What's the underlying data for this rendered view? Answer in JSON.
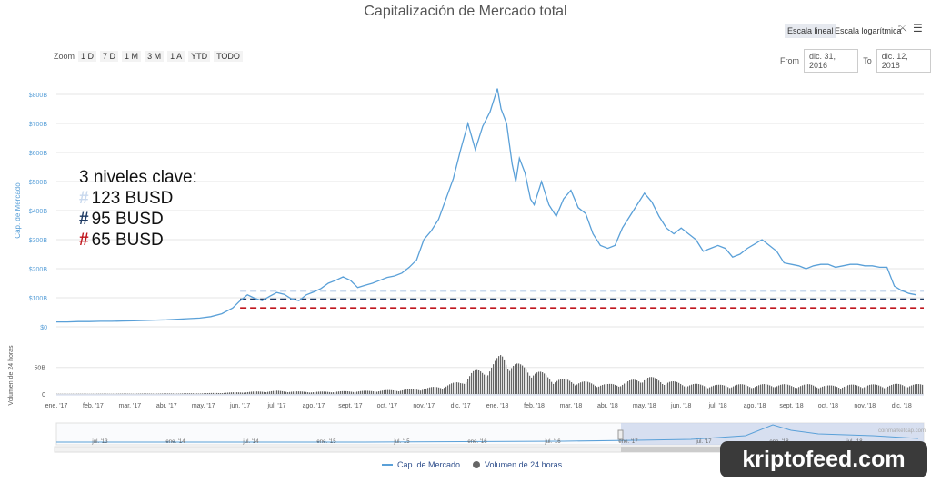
{
  "title": "Capitalización de Mercado total",
  "toolbar": {
    "scale_linear": "Escala lineal",
    "scale_log": "Escala logarítmica",
    "fullscreen_icon": "fullscreen-icon",
    "menu_icon": "menu-icon"
  },
  "zoom": {
    "label": "Zoom",
    "buttons": [
      "1 D",
      "7 D",
      "1 M",
      "3 M",
      "1 A",
      "YTD",
      "TODO"
    ]
  },
  "range": {
    "from_label": "From",
    "from_value": "dic. 31, 2016",
    "to_label": "To",
    "to_value": "dic. 12, 2018"
  },
  "annotation": {
    "heading": "3 niveles clave:",
    "levels": [
      {
        "text": "123 BUSD",
        "color": "#c9d9ee"
      },
      {
        "text": "95 BUSD",
        "color": "#1f3b63"
      },
      {
        "text": "65 BUSD",
        "color": "#c0161d"
      }
    ]
  },
  "legend": {
    "market_cap": "Cap. de Mercado",
    "volume": "Volumen de 24 horas"
  },
  "credit": "coinmarketcap.com",
  "watermark": "kriptofeed.com",
  "chart_data": {
    "type": "line",
    "title": "Capitalización de Mercado total",
    "ylabel": "Cap. de Mercado",
    "y2label": "Volumen de 24 horas",
    "yticks": [
      "$0",
      "$100B",
      "$200B",
      "$300B",
      "$400B",
      "$500B",
      "$600B",
      "$700B",
      "$800B"
    ],
    "ylim": [
      0,
      800
    ],
    "vol_ticks": [
      "0",
      "50B"
    ],
    "vol_ylim": [
      0,
      70
    ],
    "xticks": [
      "ene. '17",
      "feb. '17",
      "mar. '17",
      "abr. '17",
      "may. '17",
      "jun. '17",
      "jul. '17",
      "ago. '17",
      "sept. '17",
      "oct. '17",
      "nov. '17",
      "dic. '17",
      "ene. '18",
      "feb. '18",
      "mar. '18",
      "abr. '18",
      "may. '18",
      "jun. '18",
      "jul. '18",
      "ago. '18",
      "sept. '18",
      "oct. '18",
      "nov. '18",
      "dic. '18"
    ],
    "navigator_ticks": [
      "jul. '13",
      "ene. '14",
      "jul. '14",
      "ene. '15",
      "jul. '15",
      "ene. '16",
      "jul. '16",
      "ene. '17",
      "jul. '17",
      "ene. '18",
      "jul. '18"
    ],
    "series": [
      {
        "name": "Cap. de Mercado",
        "color": "#5aa0d8",
        "x": [
          0,
          0.3,
          0.6,
          0.9,
          1.2,
          1.5,
          1.8,
          2.1,
          2.4,
          2.7,
          3.0,
          3.3,
          3.6,
          3.9,
          4.2,
          4.5,
          4.8,
          5.0,
          5.2,
          5.4,
          5.6,
          5.8,
          6.0,
          6.2,
          6.4,
          6.6,
          6.8,
          7.0,
          7.2,
          7.4,
          7.6,
          7.8,
          8.0,
          8.2,
          8.4,
          8.6,
          8.8,
          9.0,
          9.2,
          9.4,
          9.6,
          9.8,
          10.0,
          10.2,
          10.4,
          10.6,
          10.8,
          11.0,
          11.2,
          11.4,
          11.6,
          11.8,
          12.0,
          12.1,
          12.25,
          12.4,
          12.5,
          12.6,
          12.75,
          12.9,
          13.0,
          13.2,
          13.4,
          13.6,
          13.8,
          14.0,
          14.2,
          14.4,
          14.6,
          14.8,
          15.0,
          15.2,
          15.4,
          15.6,
          15.8,
          16.0,
          16.2,
          16.4,
          16.6,
          16.8,
          17.0,
          17.2,
          17.4,
          17.6,
          17.8,
          18.0,
          18.2,
          18.4,
          18.6,
          18.8,
          19.0,
          19.2,
          19.4,
          19.6,
          19.8,
          20.0,
          20.2,
          20.4,
          20.6,
          20.8,
          21.0,
          21.2,
          21.4,
          21.6,
          21.8,
          22.0,
          22.2,
          22.4,
          22.6,
          22.8,
          23.0,
          23.2,
          23.4
        ],
        "values": [
          17,
          17,
          18,
          18,
          19,
          19,
          20,
          21,
          22,
          23,
          24,
          26,
          28,
          30,
          35,
          45,
          65,
          90,
          110,
          98,
          90,
          105,
          118,
          112,
          96,
          90,
          110,
          120,
          132,
          150,
          160,
          172,
          160,
          135,
          143,
          150,
          160,
          170,
          175,
          185,
          205,
          230,
          300,
          330,
          370,
          440,
          510,
          610,
          700,
          610,
          690,
          740,
          820,
          750,
          700,
          560,
          500,
          580,
          530,
          440,
          420,
          500,
          420,
          380,
          440,
          470,
          410,
          390,
          320,
          280,
          270,
          280,
          340,
          380,
          420,
          460,
          430,
          380,
          340,
          320,
          340,
          320,
          300,
          260,
          270,
          280,
          270,
          240,
          250,
          270,
          285,
          300,
          280,
          260,
          220,
          215,
          210,
          200,
          210,
          215,
          215,
          205,
          210,
          215,
          215,
          210,
          210,
          205,
          205,
          140,
          125,
          115,
          110
        ]
      },
      {
        "name": "Volumen de 24 horas",
        "color": "#666666",
        "x": [
          0,
          1,
          2,
          3,
          4,
          4.5,
          5,
          5.5,
          6,
          6.5,
          7,
          7.5,
          8,
          8.5,
          9,
          9.5,
          10,
          10.5,
          11,
          11.3,
          11.6,
          11.9,
          12.1,
          12.3,
          12.6,
          12.9,
          13.2,
          13.5,
          14,
          14.5,
          15,
          15.5,
          16,
          16.5,
          17,
          17.5,
          18,
          18.5,
          19,
          19.5,
          20,
          20.5,
          21,
          21.5,
          22,
          22.5,
          23,
          23.4
        ],
        "values": [
          0.3,
          0.4,
          0.6,
          0.8,
          1.2,
          2,
          3,
          4,
          5,
          4,
          3.5,
          4,
          4.5,
          5,
          6,
          7,
          9,
          13,
          20,
          35,
          38,
          50,
          62,
          55,
          45,
          40,
          33,
          25,
          22,
          18,
          15,
          19,
          28,
          22,
          17,
          15,
          14,
          15,
          14,
          16,
          14,
          15,
          13,
          14,
          15,
          14,
          16,
          15
        ]
      }
    ],
    "reference_lines": [
      {
        "value": 123,
        "color": "#c9d9ee",
        "style": "dashed"
      },
      {
        "value": 95,
        "color": "#1f3b63",
        "style": "dashed"
      },
      {
        "value": 65,
        "color": "#c0161d",
        "style": "dashed"
      }
    ],
    "grid": true,
    "legend_position": "bottom"
  }
}
